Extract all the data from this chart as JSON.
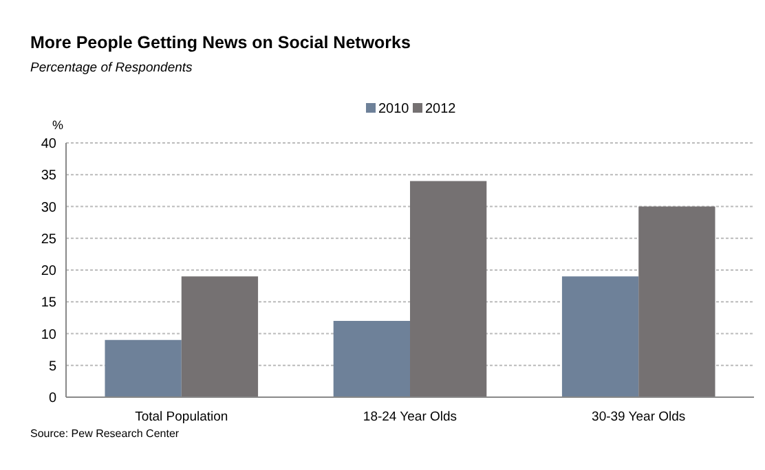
{
  "chart_data": {
    "type": "bar",
    "title": "More People Getting News on Social Networks",
    "subtitle": "Percentage of Respondents",
    "ylabel": "%",
    "categories": [
      "Total Population",
      "18-24 Year Olds",
      "30-39 Year Olds"
    ],
    "series": [
      {
        "name": "2010",
        "color": "#6e8199",
        "values": [
          9,
          12,
          19
        ]
      },
      {
        "name": "2012",
        "color": "#757172",
        "values": [
          19,
          34,
          30
        ]
      }
    ],
    "ylim": [
      0,
      40
    ],
    "yticks": [
      0,
      5,
      10,
      15,
      20,
      25,
      30,
      35,
      40
    ],
    "grid": "y",
    "legend": "top",
    "annotations": [
      "Source: Pew Research Center"
    ]
  }
}
